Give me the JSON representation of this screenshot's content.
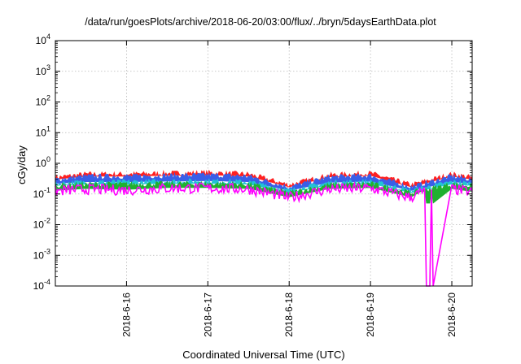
{
  "chart_data": {
    "type": "line",
    "title": "/data/run/goesPlots/archive/2018-06-20/03:00/flux/../bryn/5daysEarthData.plot",
    "xlabel": "Coordinated Universal Time (UTC)",
    "ylabel": "cGy/day",
    "yscale": "log",
    "ylim": [
      0.0001,
      10000
    ],
    "xlim": [
      "2018-06-15T03:00",
      "2018-06-20T06:00"
    ],
    "y_ticks": [
      {
        "value": 0.0001,
        "base": "10",
        "exp": "-4"
      },
      {
        "value": 0.001,
        "base": "10",
        "exp": "-3"
      },
      {
        "value": 0.01,
        "base": "10",
        "exp": "-2"
      },
      {
        "value": 0.1,
        "base": "10",
        "exp": "-1"
      },
      {
        "value": 1,
        "base": "10",
        "exp": "0"
      },
      {
        "value": 10,
        "base": "10",
        "exp": "1"
      },
      {
        "value": 100,
        "base": "10",
        "exp": "2"
      },
      {
        "value": 1000,
        "base": "10",
        "exp": "3"
      },
      {
        "value": 10000,
        "base": "10",
        "exp": "4"
      }
    ],
    "x_ticks": [
      {
        "value": "2018-06-16T00:00",
        "label": "2018-6-16"
      },
      {
        "value": "2018-06-17T00:00",
        "label": "2018-6-17"
      },
      {
        "value": "2018-06-18T00:00",
        "label": "2018-6-18"
      },
      {
        "value": "2018-06-19T00:00",
        "label": "2018-6-19"
      },
      {
        "value": "2018-06-20T00:00",
        "label": "2018-6-20"
      }
    ],
    "grid": true,
    "legend": "none",
    "series": [
      {
        "color": "#ff2020",
        "x": [
          "2018-06-15T03:00",
          "2018-06-15T12:00",
          "2018-06-16T00:00",
          "2018-06-16T12:00",
          "2018-06-17T00:00",
          "2018-06-17T12:00",
          "2018-06-18T00:00",
          "2018-06-18T12:00",
          "2018-06-19T00:00",
          "2018-06-19T12:00",
          "2018-06-20T00:00",
          "2018-06-20T06:00"
        ],
        "y": [
          0.35,
          0.45,
          0.45,
          0.48,
          0.5,
          0.45,
          0.2,
          0.42,
          0.48,
          0.2,
          0.45,
          0.35
        ]
      },
      {
        "color": "#3a5ee8",
        "x": [
          "2018-06-15T03:00",
          "2018-06-15T12:00",
          "2018-06-16T00:00",
          "2018-06-16T12:00",
          "2018-06-17T00:00",
          "2018-06-17T12:00",
          "2018-06-18T00:00",
          "2018-06-18T12:00",
          "2018-06-19T00:00",
          "2018-06-19T12:00",
          "2018-06-20T00:00",
          "2018-06-20T06:00"
        ],
        "y": [
          0.3,
          0.38,
          0.38,
          0.4,
          0.42,
          0.38,
          0.17,
          0.36,
          0.4,
          0.17,
          0.38,
          0.3
        ]
      },
      {
        "color": "#22c3d6",
        "x": [
          "2018-06-15T03:00",
          "2018-06-15T12:00",
          "2018-06-16T00:00",
          "2018-06-16T12:00",
          "2018-06-17T00:00",
          "2018-06-17T12:00",
          "2018-06-18T00:00",
          "2018-06-18T12:00",
          "2018-06-19T00:00",
          "2018-06-19T12:00",
          "2018-06-20T00:00",
          "2018-06-20T06:00"
        ],
        "y": [
          0.22,
          0.25,
          0.25,
          0.26,
          0.27,
          0.25,
          0.13,
          0.24,
          0.26,
          0.13,
          0.25,
          0.22
        ]
      },
      {
        "color": "#20b030",
        "x": [
          "2018-06-15T03:00",
          "2018-06-15T12:00",
          "2018-06-16T00:00",
          "2018-06-16T12:00",
          "2018-06-17T00:00",
          "2018-06-17T12:00",
          "2018-06-18T00:00",
          "2018-06-18T12:00",
          "2018-06-19T00:00",
          "2018-06-19T12:00",
          "2018-06-20T00:00",
          "2018-06-20T06:00"
        ],
        "y": [
          0.19,
          0.21,
          0.21,
          0.22,
          0.22,
          0.21,
          0.11,
          0.2,
          0.22,
          0.11,
          0.21,
          0.19
        ]
      },
      {
        "color": "#ff00ff",
        "x": [
          "2018-06-15T03:00",
          "2018-06-15T12:00",
          "2018-06-16T00:00",
          "2018-06-16T12:00",
          "2018-06-17T00:00",
          "2018-06-17T12:00",
          "2018-06-18T00:00",
          "2018-06-18T12:00",
          "2018-06-19T00:00",
          "2018-06-19T12:00",
          "2018-06-19T16:00",
          "2018-06-19T16:30",
          "2018-06-19T17:30",
          "2018-06-19T18:00",
          "2018-06-19T18:30",
          "2018-06-20T00:00",
          "2018-06-20T06:00"
        ],
        "y": [
          0.13,
          0.15,
          0.14,
          0.16,
          0.16,
          0.15,
          0.08,
          0.15,
          0.16,
          0.08,
          0.14,
          0.0001,
          0.0001,
          0.14,
          0.0001,
          0.15,
          0.12
        ]
      }
    ]
  }
}
